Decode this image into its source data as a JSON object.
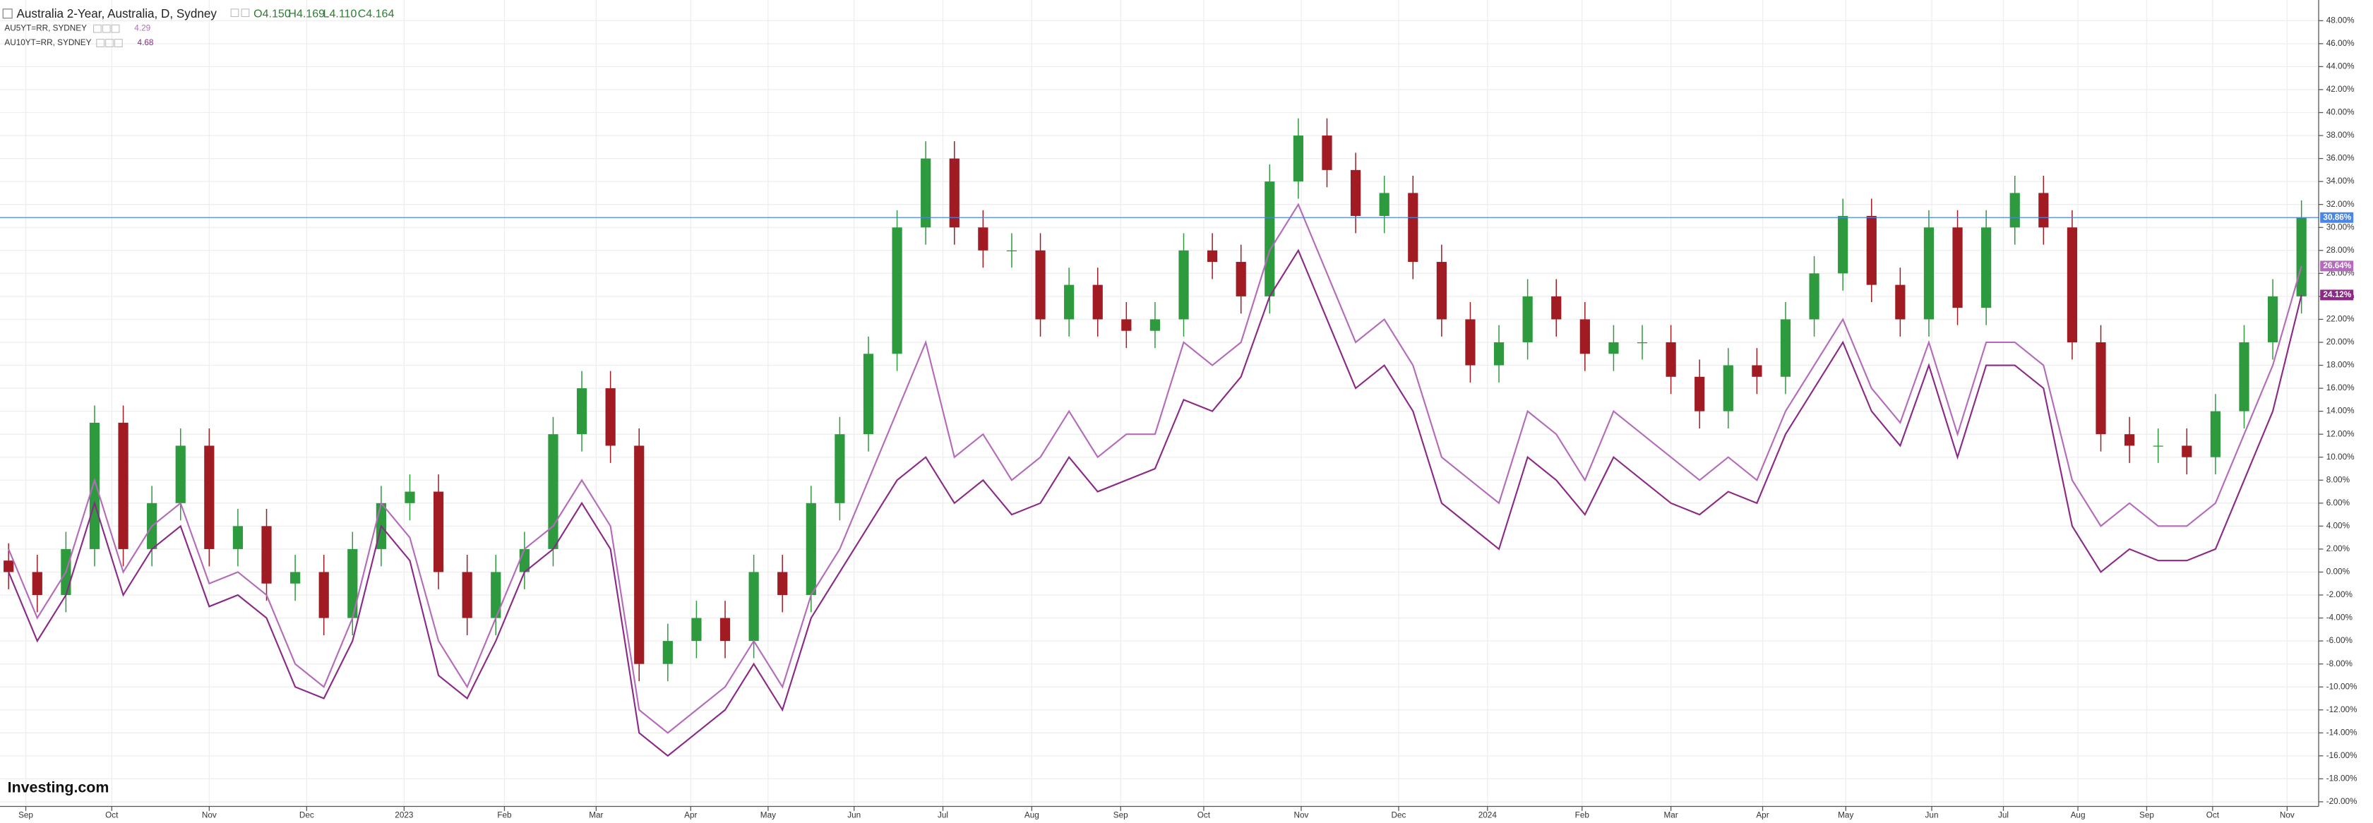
{
  "chart_data": {
    "type": "candlestick",
    "title": "Australia 2-Year, Australia, D, Sydney",
    "ohlc_summary": [
      "O4.150",
      "H4.169",
      "L4.110",
      "C4.164"
    ],
    "branding": "Investing.com",
    "up_color": "#2e9a3e",
    "down_color": "#a11b22",
    "last_label": "30.86%",
    "last_label_color": "#4a86e8",
    "x": [
      0,
      1,
      2,
      3,
      4,
      5,
      6,
      7,
      8,
      9,
      10,
      11,
      12,
      13,
      14,
      15,
      16,
      17,
      18,
      19,
      20,
      21,
      22,
      23,
      24,
      25,
      26,
      27,
      28,
      29,
      30,
      31,
      32,
      33,
      34,
      35,
      36,
      37,
      38,
      39,
      40,
      41,
      42,
      43,
      44,
      45,
      46,
      47,
      48,
      49,
      50,
      51,
      52,
      53,
      54,
      55,
      56,
      57,
      58,
      59,
      60,
      61,
      62,
      63,
      64,
      65,
      66,
      67,
      68,
      69,
      70,
      71,
      72,
      73,
      74,
      75,
      76,
      77,
      78,
      79,
      80
    ],
    "open": [
      1,
      0,
      -2,
      2,
      13,
      2,
      6,
      11,
      2,
      4,
      -1,
      0,
      -4,
      2,
      6,
      7,
      0,
      -4,
      0,
      2,
      12,
      16,
      11,
      -8,
      -6,
      -4,
      -6,
      0,
      -2,
      6,
      12,
      19,
      30,
      36,
      30,
      28,
      28,
      22,
      25,
      22,
      21,
      22,
      28,
      27,
      24,
      34,
      38,
      35,
      31,
      33,
      27,
      22,
      18,
      20,
      24,
      22,
      19,
      20,
      20,
      17,
      14,
      18,
      17,
      22,
      26,
      31,
      25,
      22,
      30,
      23,
      30,
      33,
      30,
      20,
      12,
      11,
      11,
      10,
      14,
      20,
      24
    ],
    "high": [
      2.5,
      1.5,
      3.5,
      14.5,
      14.5,
      7.5,
      12.5,
      12.5,
      5.5,
      5.5,
      1.5,
      1.5,
      3.5,
      7.5,
      8.5,
      8.5,
      1.5,
      1.5,
      3.5,
      13.5,
      17.5,
      17.5,
      12.5,
      -4.5,
      -2.5,
      -2.5,
      1.5,
      1.5,
      7.5,
      13.5,
      20.5,
      31.5,
      37.5,
      37.5,
      31.5,
      29.5,
      29.5,
      26.5,
      26.5,
      23.5,
      23.5,
      29.5,
      29.5,
      28.5,
      35.5,
      39.5,
      39.5,
      36.5,
      34.5,
      34.5,
      28.5,
      23.5,
      21.5,
      25.5,
      25.5,
      23.5,
      21.5,
      21.5,
      21.5,
      18.5,
      19.5,
      19.5,
      23.5,
      27.5,
      32.5,
      32.5,
      26.5,
      31.5,
      31.5,
      31.5,
      34.5,
      34.5,
      31.5,
      21.5,
      13.5,
      12.5,
      12.5,
      15.5,
      21.5,
      25.5,
      32.36
    ],
    "low": [
      -1.5,
      -3.5,
      -3.5,
      0.5,
      0.5,
      0.5,
      4.5,
      0.5,
      0.5,
      -2.5,
      -2.5,
      -5.5,
      -5.5,
      0.5,
      4.5,
      -1.5,
      -5.5,
      -5.5,
      -1.5,
      0.5,
      10.5,
      9.5,
      -9.5,
      -9.5,
      -7.5,
      -7.5,
      -7.5,
      -3.5,
      -3.5,
      4.5,
      10.5,
      17.5,
      28.5,
      28.5,
      26.5,
      26.5,
      20.5,
      20.5,
      20.5,
      19.5,
      19.5,
      20.5,
      25.5,
      22.5,
      22.5,
      32.5,
      33.5,
      29.5,
      29.5,
      25.5,
      20.5,
      16.5,
      16.5,
      18.5,
      20.5,
      17.5,
      17.5,
      18.5,
      15.5,
      12.5,
      12.5,
      15.5,
      15.5,
      20.5,
      24.5,
      23.5,
      20.5,
      20.5,
      21.5,
      21.5,
      28.5,
      28.5,
      18.5,
      10.5,
      9.5,
      9.5,
      8.5,
      8.5,
      12.5,
      18.5,
      22.5
    ],
    "close": [
      0,
      -2,
      2,
      13,
      2,
      6,
      11,
      2,
      4,
      -1,
      0,
      -4,
      2,
      6,
      7,
      0,
      -4,
      0,
      2,
      12,
      16,
      11,
      -8,
      -6,
      -4,
      -6,
      0,
      -2,
      6,
      12,
      19,
      30,
      36,
      30,
      28,
      28,
      22,
      25,
      22,
      21,
      22,
      28,
      27,
      24,
      34,
      38,
      35,
      31,
      33,
      27,
      22,
      18,
      20,
      24,
      22,
      19,
      20,
      20,
      17,
      14,
      18,
      17,
      22,
      26,
      31,
      25,
      22,
      30,
      23,
      30,
      33,
      30,
      20,
      12,
      11,
      11,
      10,
      14,
      20,
      24,
      30.86
    ],
    "series": [
      {
        "name": "AU5YT=RR, SYDNEY",
        "legend_value": "4.29",
        "color": "#b46bb9",
        "last_label": "26.64%",
        "values": [
          2,
          -4,
          0,
          8,
          0,
          4,
          6,
          -1,
          0,
          -2,
          -8,
          -10,
          -4,
          6,
          3,
          -6,
          -10,
          -4,
          2,
          4,
          8,
          4,
          -12,
          -14,
          -12,
          -10,
          -6,
          -10,
          -2,
          2,
          8,
          14,
          20,
          10,
          12,
          8,
          10,
          14,
          10,
          12,
          12,
          20,
          18,
          20,
          28,
          32,
          26,
          20,
          22,
          18,
          10,
          8,
          6,
          14,
          12,
          8,
          14,
          12,
          10,
          8,
          10,
          8,
          14,
          18,
          22,
          16,
          13,
          20,
          12,
          20,
          20,
          18,
          8,
          4,
          6,
          4,
          4,
          6,
          12,
          18,
          26.64
        ]
      },
      {
        "name": "AU10YT=RR, SYDNEY",
        "legend_value": "4.68",
        "color": "#8a2a86",
        "last_label": "24.12%",
        "values": [
          0,
          -6,
          -2,
          6,
          -2,
          2,
          4,
          -3,
          -2,
          -4,
          -10,
          -11,
          -6,
          4,
          1,
          -9,
          -11,
          -6,
          0,
          2,
          6,
          2,
          -14,
          -16,
          -14,
          -12,
          -8,
          -12,
          -4,
          0,
          4,
          8,
          10,
          6,
          8,
          5,
          6,
          10,
          7,
          8,
          9,
          15,
          14,
          17,
          24,
          28,
          22,
          16,
          18,
          14,
          6,
          4,
          2,
          10,
          8,
          5,
          10,
          8,
          6,
          5,
          7,
          6,
          12,
          16,
          20,
          14,
          11,
          18,
          10,
          18,
          18,
          16,
          4,
          0,
          2,
          1,
          1,
          2,
          8,
          14,
          24.12
        ]
      }
    ],
    "xlim": [
      -0.3,
      80.6
    ],
    "xticks": [
      {
        "value": 0.6,
        "label": "Sep"
      },
      {
        "value": 3.6,
        "label": "Oct"
      },
      {
        "value": 7.0,
        "label": "Nov"
      },
      {
        "value": 10.4,
        "label": "Dec"
      },
      {
        "value": 13.8,
        "label": "2023"
      },
      {
        "value": 17.3,
        "label": "Feb"
      },
      {
        "value": 20.5,
        "label": "Mar"
      },
      {
        "value": 23.8,
        "label": "Apr"
      },
      {
        "value": 26.5,
        "label": "May"
      },
      {
        "value": 29.5,
        "label": "Jun"
      },
      {
        "value": 32.6,
        "label": "Jul"
      },
      {
        "value": 35.7,
        "label": "Aug"
      },
      {
        "value": 38.8,
        "label": "Sep"
      },
      {
        "value": 41.7,
        "label": "Oct"
      },
      {
        "value": 45.1,
        "label": "Nov"
      },
      {
        "value": 48.5,
        "label": "Dec"
      },
      {
        "value": 51.6,
        "label": "2024"
      },
      {
        "value": 54.9,
        "label": "Feb"
      },
      {
        "value": 58.0,
        "label": "Mar"
      },
      {
        "value": 61.2,
        "label": "Apr"
      },
      {
        "value": 64.1,
        "label": "May"
      },
      {
        "value": 67.1,
        "label": "Jun"
      },
      {
        "value": 69.6,
        "label": "Jul"
      },
      {
        "value": 72.2,
        "label": "Aug"
      },
      {
        "value": 74.6,
        "label": "Sep"
      },
      {
        "value": 76.9,
        "label": "Oct"
      },
      {
        "value": 79.5,
        "label": "Nov"
      }
    ],
    "ylim": [
      -20.4,
      49.8
    ],
    "yticks": [
      {
        "value": 48,
        "label": "48.00%"
      },
      {
        "value": 46,
        "label": "46.00%"
      },
      {
        "value": 44,
        "label": "44.00%"
      },
      {
        "value": 42,
        "label": "42.00%"
      },
      {
        "value": 40,
        "label": "40.00%"
      },
      {
        "value": 38,
        "label": "38.00%"
      },
      {
        "value": 36,
        "label": "36.00%"
      },
      {
        "value": 34,
        "label": "34.00%"
      },
      {
        "value": 32,
        "label": "32.00%"
      },
      {
        "value": 30,
        "label": "30.00%"
      },
      {
        "value": 28,
        "label": "28.00%"
      },
      {
        "value": 26,
        "label": "26.00%"
      },
      {
        "value": 24,
        "label": "24.00%"
      },
      {
        "value": 22,
        "label": "22.00%"
      },
      {
        "value": 20,
        "label": "20.00%"
      },
      {
        "value": 18,
        "label": "18.00%"
      },
      {
        "value": 16,
        "label": "16.00%"
      },
      {
        "value": 14,
        "label": "14.00%"
      },
      {
        "value": 12,
        "label": "12.00%"
      },
      {
        "value": 10,
        "label": "10.00%"
      },
      {
        "value": 8,
        "label": "8.00%"
      },
      {
        "value": 6,
        "label": "6.00%"
      },
      {
        "value": 4,
        "label": "4.00%"
      },
      {
        "value": 2,
        "label": "2.00%"
      },
      {
        "value": 0,
        "label": "0.00%"
      },
      {
        "value": -2,
        "label": "-2.00%"
      },
      {
        "value": -4,
        "label": "-4.00%"
      },
      {
        "value": -6,
        "label": "-6.00%"
      },
      {
        "value": -8,
        "label": "-8.00%"
      },
      {
        "value": -10,
        "label": "-10.00%"
      },
      {
        "value": -12,
        "label": "-12.00%"
      },
      {
        "value": -14,
        "label": "-14.00%"
      },
      {
        "value": -16,
        "label": "-16.00%"
      },
      {
        "value": -18,
        "label": "-18.00%"
      },
      {
        "value": -20,
        "label": "-20.00%"
      }
    ],
    "grid": true
  }
}
